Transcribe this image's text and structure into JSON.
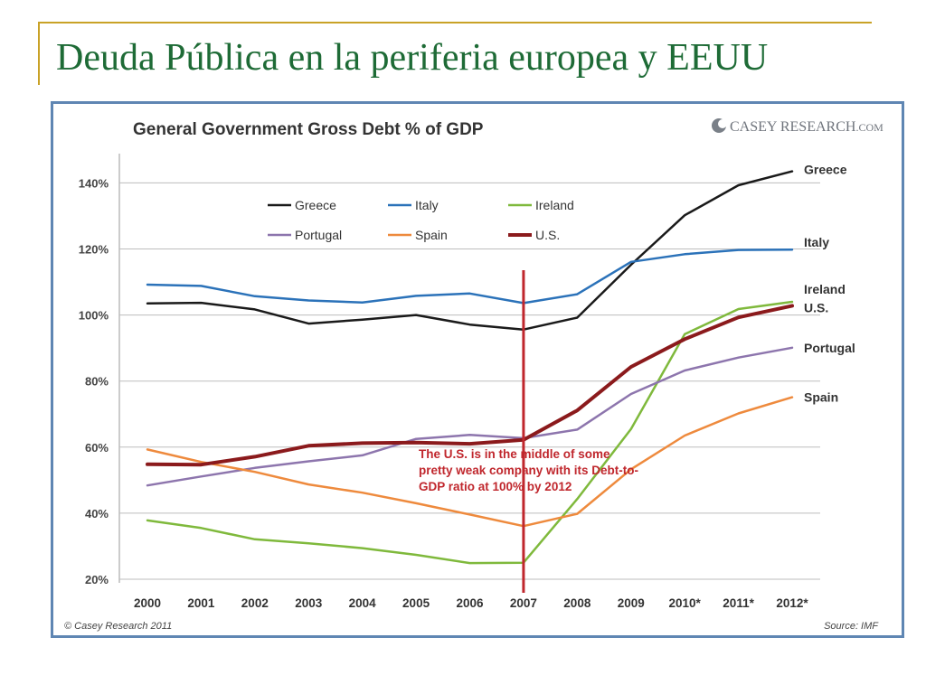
{
  "slide": {
    "title": "Deuda Pública en la periferia europea y EEUU",
    "accent_color": "#c9a227",
    "title_color": "#1e6b36"
  },
  "chart_data": {
    "type": "line",
    "title": "General Government Gross Debt % of GDP",
    "brand": {
      "prefix": "Casey ",
      "name": "Research",
      "suffix": ".com"
    },
    "footer_left": "© Casey Research 2011",
    "footer_right": "Source: IMF",
    "x": [
      "2000",
      "2001",
      "2002",
      "2003",
      "2004",
      "2005",
      "2006",
      "2007",
      "2008",
      "2009",
      "2010*",
      "2011*",
      "2012*"
    ],
    "ylim": [
      20,
      150
    ],
    "yticks": [
      20,
      40,
      60,
      80,
      100,
      120,
      140
    ],
    "ytick_labels": [
      "20%",
      "40%",
      "60%",
      "80%",
      "100%",
      "120%",
      "140%"
    ],
    "grid": true,
    "legend_position": "top-left",
    "series": [
      {
        "name": "Greece",
        "color": "#1a1a1a",
        "values": [
          103.5,
          103.7,
          101.7,
          97.4,
          98.6,
          100.0,
          97.1,
          95.6,
          99.2,
          115.2,
          130.2,
          139.3,
          143.5
        ],
        "end_label": "Greece"
      },
      {
        "name": "Italy",
        "color": "#2b72b9",
        "values": [
          109.2,
          108.8,
          105.7,
          104.4,
          103.8,
          105.8,
          106.5,
          103.6,
          106.3,
          116.1,
          118.4,
          119.7,
          119.8
        ],
        "end_label": "Italy"
      },
      {
        "name": "Ireland",
        "color": "#7fb93c",
        "values": [
          37.8,
          35.5,
          32.1,
          30.9,
          29.4,
          27.4,
          24.9,
          25.0,
          44.3,
          65.5,
          94.2,
          101.8,
          104.0
        ],
        "end_label": "Ireland"
      },
      {
        "name": "Portugal",
        "color": "#8d75ad",
        "values": [
          48.4,
          51.1,
          53.7,
          55.7,
          57.5,
          62.5,
          63.7,
          62.7,
          65.3,
          76.1,
          83.2,
          87.1,
          90.1
        ],
        "end_label": "Portugal"
      },
      {
        "name": "Spain",
        "color": "#ee8a3d",
        "values": [
          59.3,
          55.5,
          52.5,
          48.7,
          46.2,
          43.0,
          39.6,
          36.1,
          39.8,
          53.3,
          63.5,
          70.2,
          75.1
        ],
        "end_label": "Spain"
      },
      {
        "name": "U.S.",
        "color": "#8b1a1c",
        "values": [
          54.8,
          54.7,
          57.1,
          60.4,
          61.2,
          61.4,
          61.0,
          62.2,
          71.1,
          84.3,
          92.7,
          99.3,
          102.8
        ],
        "end_label": "U.S."
      }
    ],
    "annotation": {
      "text": "The U.S. is in the middle of some pretty weak company with its Debt-to-GDP ratio at 100% by 2012",
      "x": "2007",
      "color": "#c0272d"
    }
  }
}
